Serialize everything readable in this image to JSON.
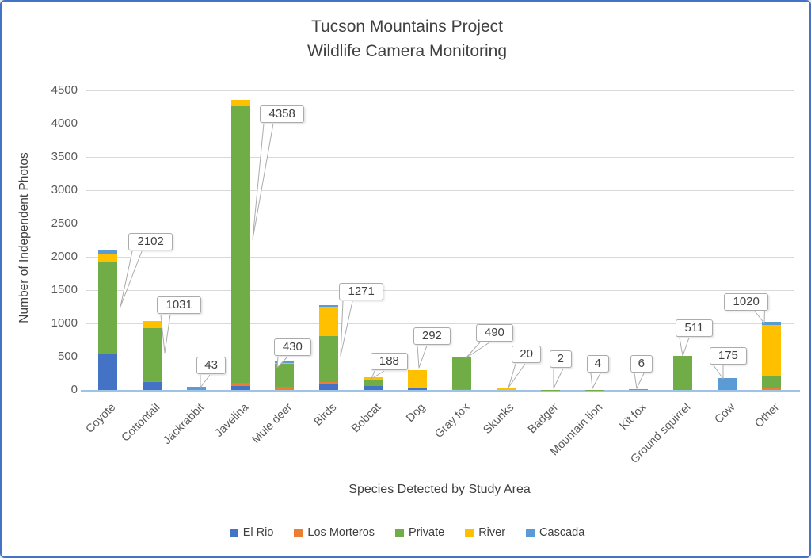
{
  "chart_data": {
    "type": "bar",
    "stacked": true,
    "title_line1": "Tucson Mountains Project",
    "title_line2": "Wildlife Camera Monitoring",
    "xlabel": "Species Detected by Study Area",
    "ylabel": "Number of Independent Photos",
    "ylim": [
      0,
      4500
    ],
    "ytick_step": 500,
    "ytick_labels": [
      "0",
      "500",
      "1000",
      "1500",
      "2000",
      "2500",
      "3000",
      "3500",
      "4000",
      "4500"
    ],
    "grid": "horizontal",
    "legend_position": "bottom",
    "categories": [
      "Coyote",
      "Cottontail",
      "Jackrabbit",
      "Javelina",
      "Mule deer",
      "Birds",
      "Bobcat",
      "Dog",
      "Gray fox",
      "Skunks",
      "Badger",
      "Mountain lion",
      "Kit fox",
      "Ground squirrel",
      "Cow",
      "Other"
    ],
    "totals": [
      2102,
      1031,
      43,
      4358,
      430,
      1271,
      188,
      292,
      490,
      20,
      2,
      4,
      6,
      511,
      175,
      1020
    ],
    "data_label_texts": [
      "2102",
      "1031",
      "43",
      "4358",
      "430",
      "1271",
      "188",
      "292",
      "490",
      "20",
      "2",
      "4",
      "6",
      "511",
      "175",
      "1020"
    ],
    "series": [
      {
        "name": "El Rio",
        "color": "#4472C4",
        "values": [
          530,
          130,
          0,
          60,
          0,
          90,
          55,
          30,
          0,
          0,
          0,
          0,
          0,
          0,
          0,
          0
        ]
      },
      {
        "name": "Los Morteros",
        "color": "#ED7D31",
        "values": [
          15,
          6,
          0,
          45,
          45,
          25,
          0,
          0,
          15,
          0,
          0,
          0,
          0,
          0,
          0,
          25
        ]
      },
      {
        "name": "Private",
        "color": "#70AD47",
        "values": [
          1377,
          795,
          0,
          4158,
          345,
          690,
          100,
          0,
          475,
          0,
          2,
          4,
          6,
          511,
          0,
          190
        ]
      },
      {
        "name": "River",
        "color": "#FFC000",
        "values": [
          120,
          100,
          0,
          95,
          10,
          446,
          33,
          262,
          0,
          20,
          0,
          0,
          0,
          0,
          0,
          760
        ]
      },
      {
        "name": "Cascada",
        "color": "#5B9BD5",
        "values": [
          60,
          0,
          43,
          0,
          30,
          20,
          0,
          0,
          0,
          0,
          0,
          0,
          0,
          0,
          175,
          45
        ]
      }
    ],
    "colors": {
      "grid": "#D9D9D9",
      "x_axis_line": "#9DC3E6",
      "tick_text": "#595959",
      "title_text": "#404040",
      "callout_border": "#ABABAB",
      "frame_border": "#4472C4"
    }
  }
}
